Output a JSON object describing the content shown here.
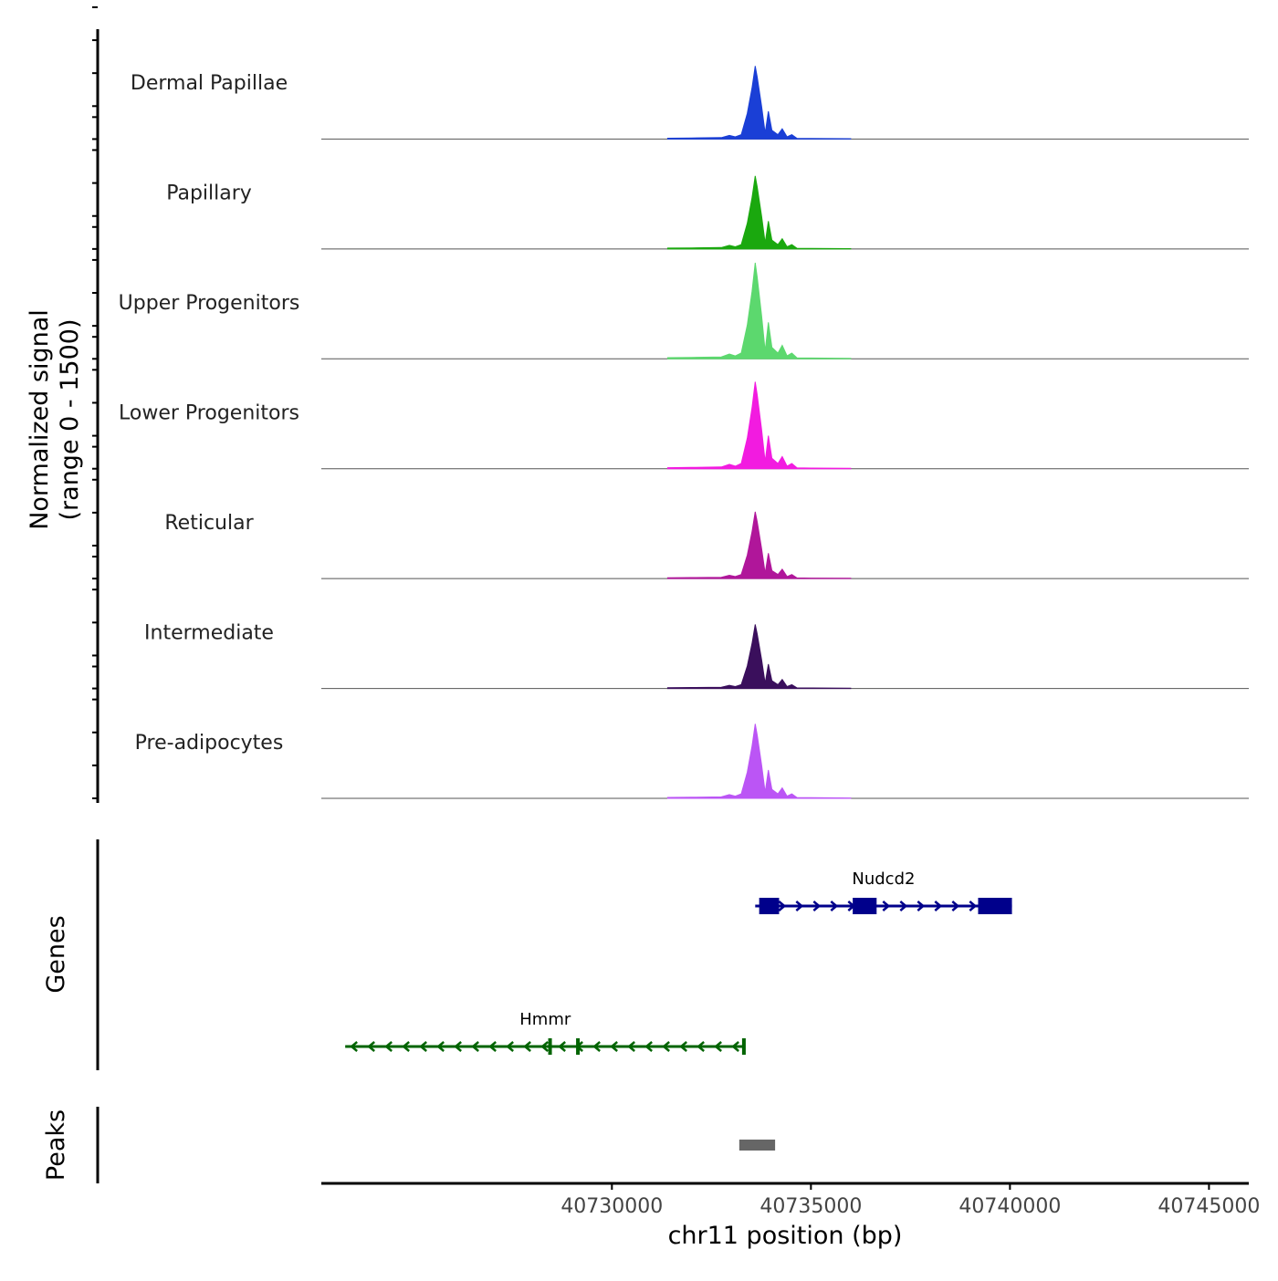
{
  "chart_data": {
    "type": "area",
    "title": "",
    "chromosome": "chr11",
    "xlabel": "chr11 position (bp)",
    "ylabel_line1": "Normalized signal",
    "ylabel_line2": "(range 0 - 1500)",
    "y_range": [
      0,
      1500
    ],
    "xlim": [
      40722700,
      40746000
    ],
    "x_ticks": [
      {
        "value": 40730000,
        "label": "40730000"
      },
      {
        "value": 40735000,
        "label": "40735000"
      },
      {
        "value": 40740000,
        "label": "40740000"
      },
      {
        "value": 40745000,
        "label": "40745000"
      }
    ],
    "peak_profile": [
      {
        "x": 40731400,
        "frac": 0.012
      },
      {
        "x": 40732000,
        "frac": 0.015
      },
      {
        "x": 40732750,
        "frac": 0.02
      },
      {
        "x": 40732950,
        "frac": 0.05
      },
      {
        "x": 40733100,
        "frac": 0.03
      },
      {
        "x": 40733250,
        "frac": 0.06
      },
      {
        "x": 40733400,
        "frac": 0.35
      },
      {
        "x": 40733520,
        "frac": 0.7
      },
      {
        "x": 40733600,
        "frac": 1.0
      },
      {
        "x": 40733650,
        "frac": 0.85
      },
      {
        "x": 40733760,
        "frac": 0.45
      },
      {
        "x": 40733850,
        "frac": 0.08
      },
      {
        "x": 40733930,
        "frac": 0.38
      },
      {
        "x": 40734020,
        "frac": 0.12
      },
      {
        "x": 40734170,
        "frac": 0.06
      },
      {
        "x": 40734280,
        "frac": 0.14
      },
      {
        "x": 40734400,
        "frac": 0.03
      },
      {
        "x": 40734520,
        "frac": 0.06
      },
      {
        "x": 40734650,
        "frac": 0.01
      },
      {
        "x": 40735000,
        "frac": 0.008
      },
      {
        "x": 40736000,
        "frac": 0.005
      }
    ],
    "tracks": [
      {
        "name": "Dermal Papillae",
        "color": "#1a3fd6",
        "max": 1050
      },
      {
        "name": "Papillary",
        "color": "#1aa80e",
        "max": 1050
      },
      {
        "name": "Upper Progenitors",
        "color": "#5cd86e",
        "max": 1380
      },
      {
        "name": "Lower Progenitors",
        "color": "#f21be0",
        "max": 1250
      },
      {
        "name": "Reticular",
        "color": "#b0169a",
        "max": 960
      },
      {
        "name": "Intermediate",
        "color": "#3a0f5c",
        "max": 920
      },
      {
        "name": "Pre-adipocytes",
        "color": "#bb55f5",
        "max": 1070
      }
    ],
    "genes_label": "Genes",
    "genes": [
      {
        "name": "Nudcd2",
        "strand": "+",
        "start": 40733600,
        "end": 40740050,
        "color": "#00008b",
        "exons": [
          [
            40733700,
            40734200
          ],
          [
            40736050,
            40736650
          ],
          [
            40739200,
            40740050
          ]
        ]
      },
      {
        "name": "Hmmr",
        "strand": "-",
        "start": 40723300,
        "end": 40733350,
        "color": "#006400",
        "exons": [
          [
            40728400,
            40728480
          ],
          [
            40729100,
            40729180
          ],
          [
            40733270,
            40733350
          ]
        ]
      }
    ],
    "peaks_label": "Peaks",
    "peaks": [
      {
        "start": 40733200,
        "end": 40734100,
        "color": "#666666"
      }
    ]
  }
}
